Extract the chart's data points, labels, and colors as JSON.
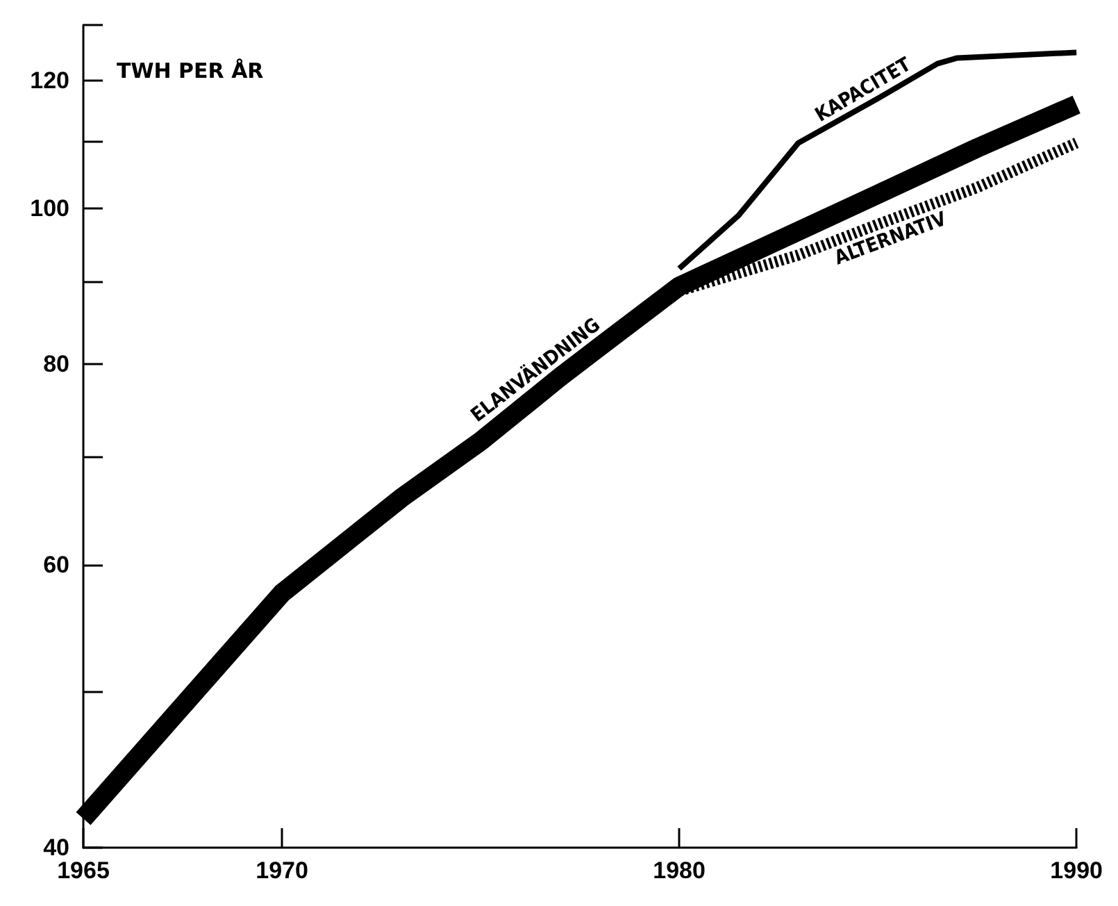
{
  "chart_data": {
    "type": "line",
    "ylabel": "TWH PER ÅR",
    "log": "y",
    "grid": false,
    "legend": false,
    "marker": "none",
    "xlim": [
      1965,
      1990
    ],
    "xticks": [
      1965,
      1970,
      1980,
      1990
    ],
    "ylim": [
      40,
      130
    ],
    "yticks": [
      40,
      {
        "value": 50,
        "label": null
      },
      60,
      {
        "value": 70,
        "label": null
      },
      80,
      {
        "value": 90,
        "label": null
      },
      100,
      {
        "value": 110,
        "label": null
      },
      120,
      {
        "value": 130,
        "label": null
      }
    ],
    "series": [
      {
        "name": "ELANVÄNDNING",
        "color": "#000000",
        "line_style": "solid",
        "x": [
          1965,
          1970,
          1973,
          1975,
          1977,
          1978,
          1980,
          1985,
          1987.5,
          1990
        ],
        "values": [
          41.7,
          57.6,
          66,
          71.6,
          78.5,
          82,
          89.4,
          102,
          109,
          116
        ]
      },
      {
        "name": "KAPACITET",
        "color": "#000000",
        "line_style": "solid",
        "x": [
          1980,
          1981.5,
          1983,
          1985,
          1986.5,
          1987,
          1990
        ],
        "values": [
          91.7,
          99,
          109.8,
          117,
          123,
          124,
          125
        ]
      },
      {
        "name": "ALTERNATIV",
        "color": "#000000",
        "line_style": "dotted",
        "x": [
          1980,
          1983,
          1985,
          1987.5,
          1990
        ],
        "values": [
          88.8,
          93.5,
          97.7,
          103,
          109.8
        ]
      }
    ]
  }
}
